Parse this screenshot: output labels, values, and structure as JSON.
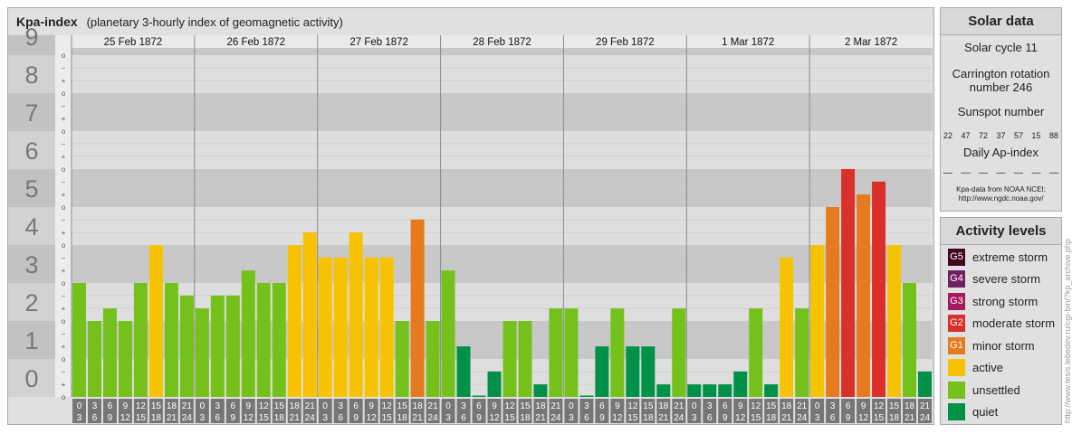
{
  "header": {
    "title": "Kpa-index",
    "subtitle": "(planetary 3-hourly index of geomagnetic activity)"
  },
  "chart_data": {
    "type": "bar",
    "ylim": [
      0,
      9
    ],
    "y_tick_labels": [
      "0",
      "1",
      "2",
      "3",
      "4",
      "5",
      "6",
      "7",
      "8",
      "9"
    ],
    "sub_tick_labels": [
      "o",
      "+",
      "−"
    ],
    "days": [
      "25 Feb 1872",
      "26 Feb 1872",
      "27 Feb 1872",
      "28 Feb 1872",
      "29 Feb 1872",
      "1 Mar 1872",
      "2 Mar 1872"
    ],
    "interval_labels": [
      [
        "0",
        "3"
      ],
      [
        "3",
        "6"
      ],
      [
        "6",
        "9"
      ],
      [
        "9",
        "12"
      ],
      [
        "12",
        "15"
      ],
      [
        "15",
        "18"
      ],
      [
        "18",
        "21"
      ],
      [
        "21",
        "24"
      ]
    ],
    "values": [
      [
        3.0,
        2.0,
        2.33,
        2.0,
        3.0,
        4.0,
        3.0,
        2.67
      ],
      [
        2.33,
        2.67,
        2.67,
        3.33,
        3.0,
        3.0,
        4.0,
        4.33
      ],
      [
        3.67,
        3.67,
        4.33,
        3.67,
        3.67,
        2.0,
        4.67,
        2.0
      ],
      [
        3.33,
        1.33,
        0.0,
        0.67,
        2.0,
        2.0,
        0.33,
        2.33
      ],
      [
        2.33,
        0.0,
        1.33,
        2.33,
        1.33,
        1.33,
        0.33,
        2.33
      ],
      [
        0.33,
        0.33,
        0.33,
        0.67,
        2.33,
        0.33,
        3.67,
        2.33
      ],
      [
        4.0,
        5.0,
        6.0,
        5.33,
        5.67,
        4.0,
        3.0,
        0.67
      ]
    ],
    "colors": {
      "quiet": "#009149",
      "unsettled": "#74c11c",
      "active": "#f7c300",
      "minor": "#e57a1e",
      "moderate": "#d9302a",
      "strong": "#a7195f",
      "severe": "#721f63",
      "extreme": "#44061f"
    }
  },
  "solar": {
    "heading": "Solar data",
    "cycle": "Solar cycle 11",
    "rotation_line1": "Carrington rotation",
    "rotation_line2": "number 246",
    "sunspot_heading": "Sunspot number",
    "sunspot_values": [
      "22",
      "47",
      "72",
      "37",
      "57",
      "15",
      "88"
    ],
    "ap_heading": "Daily Ap-index",
    "ap_values": [
      "—",
      "—",
      "—",
      "—",
      "—",
      "—",
      "—"
    ],
    "credit_line1": "Kpa-data from NOAA NCEI:",
    "credit_line2": "http://www.ngdc.noaa.gov/"
  },
  "activity": {
    "heading": "Activity levels",
    "levels": [
      {
        "badge": "G5",
        "label": "extreme storm",
        "color": "#44061f"
      },
      {
        "badge": "G4",
        "label": "severe storm",
        "color": "#721f63"
      },
      {
        "badge": "G3",
        "label": "strong storm",
        "color": "#a7195f"
      },
      {
        "badge": "G2",
        "label": "moderate storm",
        "color": "#d9302a"
      },
      {
        "badge": "G1",
        "label": "minor storm",
        "color": "#e57a1e"
      },
      {
        "badge": "",
        "label": "active",
        "color": "#f7c300"
      },
      {
        "badge": "",
        "label": "unsettled",
        "color": "#74c11c"
      },
      {
        "badge": "",
        "label": "quiet",
        "color": "#009149"
      }
    ]
  },
  "watermark": "http://www.tesis.lebedev.ru/cgi-bin/?kp_archive.php"
}
